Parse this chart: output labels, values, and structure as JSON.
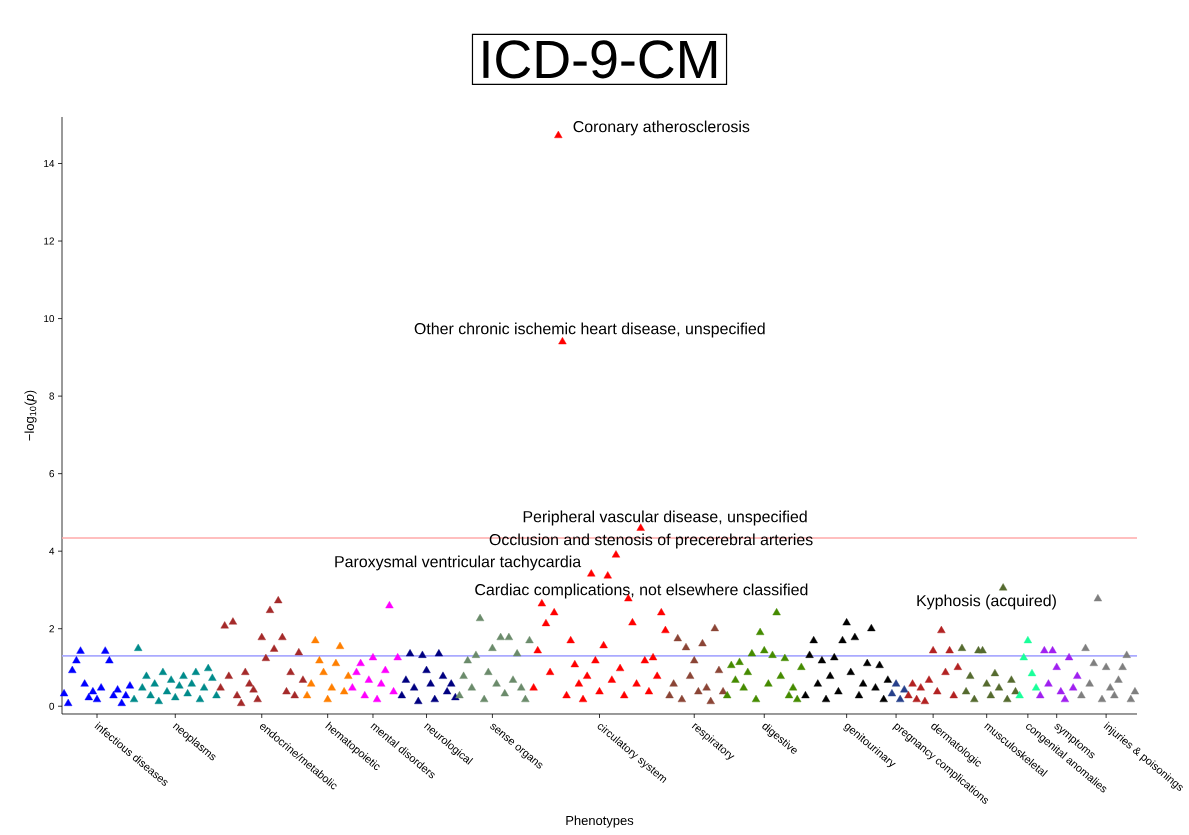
{
  "chart_data": {
    "type": "scatter",
    "title": "ICD-9-CM",
    "xlabel": "Phenotypes",
    "ylabel": "−log$_{10}$(*p*)",
    "ylim": [
      -0.2,
      15.2
    ],
    "yticks": [
      0,
      2,
      4,
      6,
      8,
      10,
      12,
      14
    ],
    "grid": false,
    "marker": "triangle",
    "ref_lines": [
      {
        "axis": "y",
        "value": 4.34,
        "color": "#ffaaaa"
      },
      {
        "axis": "y",
        "value": 1.3,
        "color": "#aaaaff"
      }
    ],
    "annotations": [
      "Coronary atherosclerosis",
      "Other chronic ischemic heart disease, unspecified",
      "Peripheral vascular disease, unspecified",
      "Occlusion and stenosis of precerebral arteries",
      "Paroxysmal ventricular tachycardia",
      "Cardiac complications, not elsewhere classified",
      "Kyphosis (acquired)"
    ],
    "categories": [
      null,
      null,
      null,
      null,
      null,
      null,
      null,
      null,
      "infectious diseases",
      null,
      null,
      null,
      null,
      null,
      null,
      null,
      null,
      null,
      null,
      null,
      null,
      null,
      null,
      null,
      null,
      null,
      null,
      "neoplasms",
      null,
      null,
      null,
      null,
      null,
      null,
      null,
      null,
      null,
      null,
      null,
      null,
      null,
      null,
      null,
      null,
      null,
      null,
      null,
      null,
      "endocrine/metabolic",
      null,
      null,
      null,
      null,
      null,
      null,
      null,
      null,
      null,
      null,
      null,
      null,
      null,
      null,
      null,
      "hematopoietic",
      null,
      null,
      null,
      null,
      null,
      null,
      null,
      null,
      null,
      null,
      "mental disorders",
      null,
      null,
      null,
      null,
      null,
      null,
      null,
      null,
      null,
      null,
      null,
      null,
      "neurological",
      null,
      null,
      null,
      null,
      null,
      null,
      null,
      null,
      null,
      null,
      null,
      null,
      null,
      null,
      null,
      "sense organs",
      null,
      null,
      null,
      null,
      null,
      null,
      null,
      null,
      null,
      null,
      null,
      null,
      null,
      null,
      null,
      null,
      null,
      null,
      null,
      null,
      null,
      null,
      null,
      null,
      null,
      "circulatory system",
      null,
      null,
      null,
      null,
      null,
      null,
      null,
      null,
      null,
      null,
      null,
      null,
      null,
      null,
      null,
      null,
      null,
      null,
      null,
      null,
      null,
      null,
      "respiratory",
      null,
      null,
      null,
      null,
      null,
      null,
      null,
      null,
      null,
      null,
      null,
      null,
      null,
      null,
      null,
      null,
      "digestive",
      null,
      null,
      null,
      null,
      null,
      null,
      null,
      null,
      null,
      null,
      null,
      null,
      null,
      null,
      null,
      null,
      null,
      null,
      null,
      "genitourinary",
      null,
      null,
      null,
      null,
      null,
      null,
      null,
      null,
      null,
      null,
      null,
      "pregnancy complications",
      null,
      null,
      null,
      null,
      null,
      null,
      null,
      null,
      "dermatologic",
      null,
      null,
      null,
      null,
      null,
      null,
      null,
      null,
      null,
      null,
      null,
      null,
      "musculoskeletal",
      null,
      null,
      null,
      null,
      null,
      null,
      null,
      null,
      null,
      "congenital anomalies",
      null,
      null,
      null,
      null,
      null,
      null,
      "symptoms",
      null,
      null,
      null,
      null,
      null,
      null,
      null,
      null,
      null,
      null,
      null,
      "injuries & poisonings",
      null,
      null,
      null,
      null,
      null,
      null,
      null
    ],
    "values": [
      0.35,
      0.1,
      0.95,
      1.2,
      1.45,
      0.6,
      0.25,
      0.4,
      0.2,
      0.5,
      1.45,
      1.2,
      0.3,
      0.45,
      0.1,
      0.3,
      0.55,
      0.2,
      1.52,
      0.5,
      0.8,
      0.3,
      0.6,
      0.15,
      0.9,
      0.4,
      0.7,
      0.25,
      0.55,
      0.8,
      0.35,
      0.6,
      0.9,
      0.2,
      0.5,
      1.0,
      0.75,
      0.3,
      0.5,
      2.1,
      0.8,
      2.2,
      0.3,
      0.1,
      0.9,
      0.6,
      0.45,
      0.2,
      1.8,
      1.26,
      2.5,
      1.5,
      2.75,
      1.8,
      0.4,
      0.9,
      0.3,
      1.41,
      0.7,
      0.3,
      0.6,
      1.72,
      1.2,
      0.9,
      0.2,
      0.5,
      1.13,
      1.57,
      0.4,
      0.8,
      0.5,
      0.9,
      1.13,
      0.3,
      0.7,
      1.28,
      0.2,
      0.6,
      0.95,
      2.62,
      0.4,
      1.28,
      0.3,
      0.7,
      1.38,
      0.5,
      0.15,
      1.34,
      0.95,
      0.6,
      0.2,
      1.38,
      0.8,
      0.4,
      0.6,
      0.25,
      0.3,
      0.8,
      1.2,
      0.5,
      1.34,
      2.29,
      0.2,
      0.9,
      1.52,
      0.6,
      1.8,
      0.35,
      1.8,
      0.7,
      1.38,
      0.5,
      0.2,
      1.72,
      0.5,
      1.46,
      2.67,
      2.16,
      0.9,
      2.44,
      14.75,
      9.43,
      0.3,
      1.72,
      1.1,
      0.6,
      0.2,
      0.8,
      3.44,
      1.2,
      0.4,
      1.59,
      3.39,
      0.7,
      3.93,
      1.0,
      0.3,
      2.8,
      2.18,
      0.6,
      4.62,
      1.2,
      0.4,
      1.28,
      0.8,
      2.44,
      1.98,
      0.3,
      0.6,
      1.77,
      0.2,
      1.54,
      0.8,
      1.2,
      0.4,
      1.64,
      0.5,
      0.15,
      2.03,
      0.95,
      0.4,
      0.3,
      1.08,
      0.7,
      1.16,
      0.5,
      0.9,
      1.38,
      0.2,
      1.93,
      1.46,
      0.6,
      1.34,
      2.44,
      0.8,
      1.26,
      0.3,
      0.5,
      0.2,
      1.03,
      0.3,
      1.34,
      1.72,
      0.6,
      1.2,
      0.2,
      0.8,
      1.28,
      0.4,
      1.72,
      2.18,
      0.9,
      1.8,
      0.3,
      0.6,
      1.13,
      2.03,
      0.5,
      1.08,
      0.2,
      0.7,
      0.35,
      0.6,
      0.2,
      0.45,
      0.3,
      0.6,
      0.2,
      0.5,
      0.15,
      0.7,
      1.46,
      0.4,
      1.98,
      0.9,
      1.46,
      0.3,
      1.03,
      1.52,
      0.4,
      0.8,
      0.2,
      1.46,
      1.46,
      0.6,
      0.3,
      0.87,
      0.5,
      3.08,
      0.2,
      0.7,
      0.4,
      0.3,
      1.28,
      1.72,
      0.87,
      0.5,
      0.3,
      1.46,
      0.6,
      1.46,
      1.03,
      0.4,
      0.2,
      1.28,
      0.5,
      0.8,
      0.3,
      1.52,
      0.6,
      1.13,
      2.8,
      0.2,
      1.03,
      0.5,
      0.3,
      0.7,
      1.03,
      1.34,
      0.2,
      0.4
    ],
    "colors": [
      "#0000ff",
      "#0000ff",
      "#0000ff",
      "#0000ff",
      "#0000ff",
      "#0000ff",
      "#0000ff",
      "#0000ff",
      "#0000ff",
      "#0000ff",
      "#0000ff",
      "#0000ff",
      "#0000ff",
      "#0000ff",
      "#0000ff",
      "#0000ff",
      "#0000ff",
      "#008b8b",
      "#008b8b",
      "#008b8b",
      "#008b8b",
      "#008b8b",
      "#008b8b",
      "#008b8b",
      "#008b8b",
      "#008b8b",
      "#008b8b",
      "#008b8b",
      "#008b8b",
      "#008b8b",
      "#008b8b",
      "#008b8b",
      "#008b8b",
      "#008b8b",
      "#008b8b",
      "#008b8b",
      "#008b8b",
      "#008b8b",
      "#a52a2a",
      "#a52a2a",
      "#a52a2a",
      "#a52a2a",
      "#a52a2a",
      "#a52a2a",
      "#a52a2a",
      "#a52a2a",
      "#a52a2a",
      "#a52a2a",
      "#a52a2a",
      "#a52a2a",
      "#a52a2a",
      "#a52a2a",
      "#a52a2a",
      "#a52a2a",
      "#a52a2a",
      "#a52a2a",
      "#a52a2a",
      "#a52a2a",
      "#a52a2a",
      "#ff7f00",
      "#ff7f00",
      "#ff7f00",
      "#ff7f00",
      "#ff7f00",
      "#ff7f00",
      "#ff7f00",
      "#ff7f00",
      "#ff7f00",
      "#ff7f00",
      "#ff7f00",
      "#ff00ff",
      "#ff00ff",
      "#ff00ff",
      "#ff00ff",
      "#ff00ff",
      "#ff00ff",
      "#ff00ff",
      "#ff00ff",
      "#ff00ff",
      "#ff00ff",
      "#ff00ff",
      "#ff00ff",
      "#000080",
      "#000080",
      "#000080",
      "#000080",
      "#000080",
      "#000080",
      "#000080",
      "#000080",
      "#000080",
      "#000080",
      "#000080",
      "#000080",
      "#000080",
      "#000080",
      "#6b8b6b",
      "#6b8b6b",
      "#6b8b6b",
      "#6b8b6b",
      "#6b8b6b",
      "#6b8b6b",
      "#6b8b6b",
      "#6b8b6b",
      "#6b8b6b",
      "#6b8b6b",
      "#6b8b6b",
      "#6b8b6b",
      "#6b8b6b",
      "#6b8b6b",
      "#6b8b6b",
      "#6b8b6b",
      "#6b8b6b",
      "#6b8b6b",
      "#ff0000",
      "#ff0000",
      "#ff0000",
      "#ff0000",
      "#ff0000",
      "#ff0000",
      "#ff0000",
      "#ff0000",
      "#ff0000",
      "#ff0000",
      "#ff0000",
      "#ff0000",
      "#ff0000",
      "#ff0000",
      "#ff0000",
      "#ff0000",
      "#ff0000",
      "#ff0000",
      "#ff0000",
      "#ff0000",
      "#ff0000",
      "#ff0000",
      "#ff0000",
      "#ff0000",
      "#ff0000",
      "#ff0000",
      "#ff0000",
      "#ff0000",
      "#ff0000",
      "#ff0000",
      "#ff0000",
      "#ff0000",
      "#ff0000",
      "#8b4536",
      "#8b4536",
      "#8b4536",
      "#8b4536",
      "#8b4536",
      "#8b4536",
      "#8b4536",
      "#8b4536",
      "#8b4536",
      "#8b4536",
      "#8b4536",
      "#8b4536",
      "#8b4536",
      "#8b4536",
      "#458b00",
      "#458b00",
      "#458b00",
      "#458b00",
      "#458b00",
      "#458b00",
      "#458b00",
      "#458b00",
      "#458b00",
      "#458b00",
      "#458b00",
      "#458b00",
      "#458b00",
      "#458b00",
      "#458b00",
      "#458b00",
      "#458b00",
      "#458b00",
      "#458b00",
      "#000000",
      "#000000",
      "#000000",
      "#000000",
      "#000000",
      "#000000",
      "#000000",
      "#000000",
      "#000000",
      "#000000",
      "#000000",
      "#000000",
      "#000000",
      "#000000",
      "#000000",
      "#000000",
      "#000000",
      "#000000",
      "#000000",
      "#000000",
      "#000000",
      "#27408b",
      "#27408b",
      "#27408b",
      "#27408b",
      "#b22222",
      "#b22222",
      "#b22222",
      "#b22222",
      "#b22222",
      "#b22222",
      "#b22222",
      "#b22222",
      "#b22222",
      "#b22222",
      "#b22222",
      "#b22222",
      "#b22222",
      "#556b2f",
      "#556b2f",
      "#556b2f",
      "#556b2f",
      "#556b2f",
      "#556b2f",
      "#556b2f",
      "#556b2f",
      "#556b2f",
      "#556b2f",
      "#556b2f",
      "#556b2f",
      "#556b2f",
      "#556b2f",
      "#1aff9a",
      "#1aff9a",
      "#1aff9a",
      "#1aff9a",
      "#1aff9a",
      "#a020f0",
      "#a020f0",
      "#a020f0",
      "#a020f0",
      "#a020f0",
      "#a020f0",
      "#a020f0",
      "#a020f0",
      "#a020f0",
      "#a020f0",
      "#7f7f7f",
      "#7f7f7f",
      "#7f7f7f",
      "#7f7f7f",
      "#7f7f7f",
      "#7f7f7f",
      "#7f7f7f",
      "#7f7f7f",
      "#7f7f7f",
      "#7f7f7f",
      "#7f7f7f",
      "#7f7f7f",
      "#7f7f7f",
      "#7f7f7f"
    ]
  }
}
